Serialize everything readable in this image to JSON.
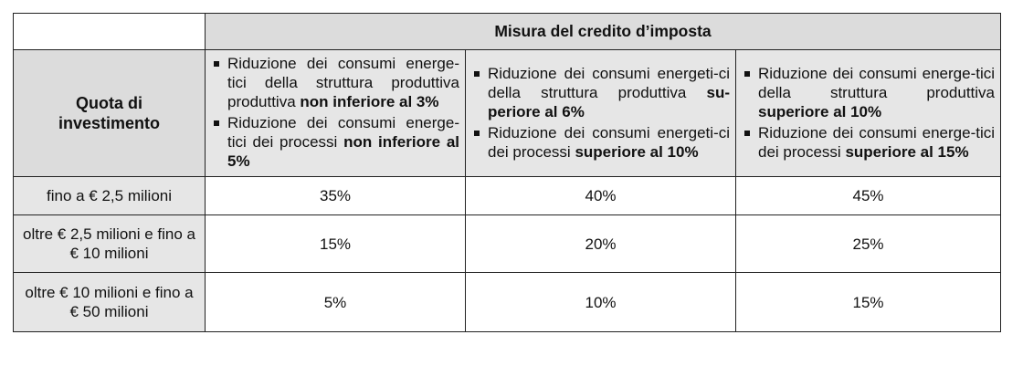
{
  "header": {
    "title": "Misura del credito d’imposta",
    "row_header": "Quota di investimento"
  },
  "criteria": [
    {
      "items": [
        {
          "text": "Riduzione dei consumi energe-tici della struttura produttiva produttiva ",
          "bold": "non inferiore al 3%"
        },
        {
          "text": "Riduzione dei consumi energe-tici dei processi ",
          "bold": "non inferiore al 5%"
        }
      ]
    },
    {
      "items": [
        {
          "text": "Riduzione dei consumi energeti-ci della struttura produttiva ",
          "bold": "su-periore al 6%"
        },
        {
          "text": "Riduzione dei consumi energeti-ci dei processi ",
          "bold": "superiore al 10%"
        }
      ]
    },
    {
      "items": [
        {
          "text": "Riduzione dei consumi energe-tici della struttura produttiva ",
          "bold": "superiore al 10%"
        },
        {
          "text": "Riduzione dei consumi energe-tici dei processi ",
          "bold": "superiore al 15%"
        }
      ]
    }
  ],
  "rows": [
    {
      "label": "fino a € 2,5 milioni",
      "values": [
        "35%",
        "40%",
        "45%"
      ]
    },
    {
      "label": "oltre € 2,5 milioni e fino a € 10 milioni",
      "values": [
        "15%",
        "20%",
        "25%"
      ]
    },
    {
      "label": "oltre € 10 milioni e fino a € 50 milioni",
      "values": [
        "5%",
        "10%",
        "15%"
      ]
    }
  ]
}
